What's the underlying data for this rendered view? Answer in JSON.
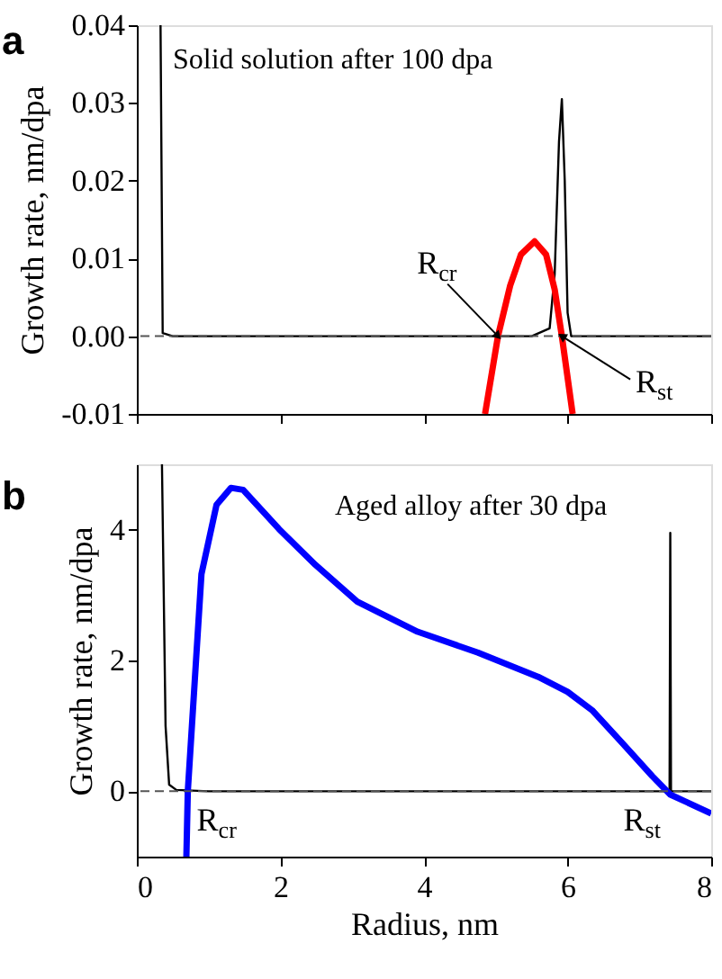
{
  "chart_data": [
    {
      "type": "line",
      "title": "a",
      "ylabel": "Growth rate, nm/dpa",
      "xlim": [
        0,
        8
      ],
      "xticks": [
        0,
        2,
        4,
        6,
        8
      ],
      "tick_labels": "y",
      "ylim": [
        -0.01,
        0.04
      ],
      "yticks": [
        {
          "value": -0.01,
          "label": "-0.01"
        },
        {
          "value": 0,
          "label": "0.00"
        },
        {
          "value": 0.01,
          "label": "0.01"
        },
        {
          "value": 0.02,
          "label": "0.02"
        },
        {
          "value": 0.03,
          "label": "0.03"
        },
        {
          "value": 0.04,
          "label": "0.04"
        }
      ],
      "series": [
        {
          "color": "#000000",
          "x": [
            0.33,
            0.36,
            0.5,
            2,
            5.5,
            5.75,
            5.82,
            5.88,
            5.92,
            5.96,
            6.0,
            6.05,
            8
          ],
          "values": [
            0.04,
            0.0004,
            0,
            0,
            0,
            0.001,
            0.008,
            0.025,
            0.0305,
            0.02,
            0.003,
            0,
            0
          ]
        },
        {
          "color": "#ff0000",
          "x": [
            4.85,
            5.03,
            5.2,
            5.35,
            5.54,
            5.7,
            5.82,
            5.92,
            6.07
          ],
          "values": [
            -0.01,
            0,
            0.0065,
            0.0105,
            0.0122,
            0.0105,
            0.006,
            0,
            -0.01
          ]
        }
      ],
      "ref_lines": [
        {
          "axis": "y",
          "value": 0,
          "line_style": "dashed",
          "color": "#555555"
        }
      ],
      "annotations": [
        "Solid solution after 100 dpa",
        {
          "text": "R$_{cr}$",
          "x": 5.03,
          "y": 0
        },
        {
          "text": "R$_{st}$",
          "x": 5.92,
          "y": 0
        }
      ]
    },
    {
      "type": "line",
      "title": "b",
      "xlabel": "Radius, nm",
      "ylabel": "Growth rate, nm/dpa",
      "xlim": [
        0,
        8
      ],
      "xticks": [
        0,
        2,
        4,
        6,
        8
      ],
      "ylim": [
        -1,
        5
      ],
      "yticks": [
        0,
        2,
        4
      ],
      "series": [
        {
          "color": "#000000",
          "x": [
            0.35,
            0.4,
            0.45,
            0.55,
            1,
            7.42,
            7.43,
            7.44,
            8
          ],
          "values": [
            5,
            1.0,
            0.1,
            0.02,
            0,
            0,
            3.95,
            0,
            0
          ]
        },
        {
          "color": "#0000ff",
          "x": [
            0.69,
            0.71,
            0.9,
            1.11,
            1.31,
            1.48,
            1.98,
            2.49,
            3.07,
            3.91,
            4.75,
            5.59,
            6.0,
            6.34,
            6.76,
            7.18,
            7.43,
            8
          ],
          "values": [
            -1,
            0,
            3.32,
            4.38,
            4.64,
            4.61,
            4.01,
            3.46,
            2.9,
            2.44,
            2.12,
            1.75,
            1.52,
            1.24,
            0.74,
            0.23,
            -0.05,
            -0.34
          ]
        }
      ],
      "ref_lines": [
        {
          "axis": "y",
          "value": 0,
          "line_style": "dashed",
          "color": "#555555"
        }
      ],
      "annotations": [
        "Aged alloy after 30 dpa",
        {
          "text": "R$_{cr}$",
          "x": 0.71,
          "y": 0
        },
        {
          "text": "R$_{st}$",
          "x": 7.43,
          "y": 0
        }
      ]
    }
  ]
}
